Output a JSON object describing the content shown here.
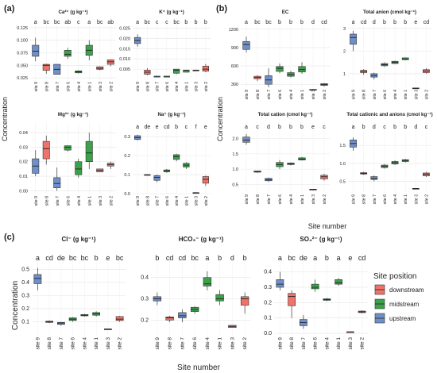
{
  "figure": {
    "panel_labels": [
      "(a)",
      "(b)",
      "(c)"
    ],
    "y_axis_label": "Concentration",
    "x_axis_label_b": "Site number",
    "x_axis_label_c": "Site number",
    "sites": [
      "site 9",
      "site 8",
      "site 7",
      "site 6",
      "site 4",
      "site 1",
      "site 3",
      "site 2"
    ],
    "positions": [
      "upstream",
      "downstream",
      "upstream",
      "midstream",
      "midstream",
      "midstream",
      "downstream",
      "downstream"
    ],
    "colors": {
      "upstream": "#6f8fc9",
      "midstream": "#3ca24a",
      "downstream": "#f0726b"
    },
    "legend": {
      "title": "Site position",
      "items": [
        {
          "label": "downstream",
          "key": "downstream"
        },
        {
          "label": "midstream",
          "key": "midstream"
        },
        {
          "label": "upstream",
          "key": "upstream"
        }
      ]
    }
  },
  "chart_data": [
    {
      "type": "box",
      "title": "Ca²⁺ (g kg⁻¹)",
      "ylim": [
        0.022,
        0.128
      ],
      "ticks": [
        "0.025",
        "0.050",
        "0.075",
        "0.100",
        "0.125"
      ],
      "tickValues": [
        0.025,
        0.05,
        0.075,
        0.1,
        0.125
      ],
      "letters": [
        "a",
        "bc",
        "bc",
        "ab",
        "c",
        "a",
        "bc",
        "ab"
      ],
      "boxes": [
        [
          0.058,
          0.068,
          0.078,
          0.09,
          0.105
        ],
        [
          0.033,
          0.04,
          0.05,
          0.052,
          0.053
        ],
        [
          0.032,
          0.032,
          0.042,
          0.052,
          0.052
        ],
        [
          0.063,
          0.068,
          0.072,
          0.08,
          0.085
        ],
        [
          0.034,
          0.035,
          0.037,
          0.039,
          0.04
        ],
        [
          0.06,
          0.07,
          0.08,
          0.09,
          0.1
        ],
        [
          0.04,
          0.042,
          0.044,
          0.047,
          0.048
        ],
        [
          0.048,
          0.052,
          0.057,
          0.061,
          0.062
        ]
      ]
    },
    {
      "type": "box",
      "title": "K⁺ (g kg⁻¹)",
      "ylim": [
        0,
        0.026
      ],
      "ticks": [
        "0.005",
        "0.010",
        "0.015",
        "0.020",
        "0.025"
      ],
      "tickValues": [
        0.005,
        0.01,
        0.015,
        0.02,
        0.025
      ],
      "letters": [
        "a",
        "bc",
        "c",
        "c",
        "bc",
        "b",
        "b",
        "b"
      ],
      "boxes": [
        [
          0.016,
          0.0175,
          0.019,
          0.0205,
          0.022
        ],
        [
          0.002,
          0.0025,
          0.0035,
          0.0045,
          0.0055
        ],
        [
          0.0015,
          0.0015,
          0.0015,
          0.0015,
          0.0015
        ],
        [
          0.0015,
          0.0015,
          0.0015,
          0.0015,
          0.0015
        ],
        [
          0.0025,
          0.003,
          0.0045,
          0.005,
          0.005
        ],
        [
          0.0035,
          0.0035,
          0.0045,
          0.0045,
          0.0045
        ],
        [
          0.0045,
          0.0045,
          0.0045,
          0.0045,
          0.0045
        ],
        [
          0.0035,
          0.004,
          0.005,
          0.0065,
          0.0075
        ]
      ]
    },
    {
      "type": "box",
      "title": "Mg²⁺ (g kg⁻¹)",
      "ylim": [
        -0.002,
        0.045
      ],
      "ticks": [
        "0.00",
        "0.01",
        "0.02",
        "0.03",
        "0.04"
      ],
      "tickValues": [
        0,
        0.01,
        0.02,
        0.03,
        0.04
      ],
      "letters": [],
      "boxes": [
        [
          0.01,
          0.012,
          0.017,
          0.022,
          0.028
        ],
        [
          0.018,
          0.022,
          0.029,
          0.034,
          0.038
        ],
        [
          0.0,
          0.002,
          0.005,
          0.009,
          0.016
        ],
        [
          0.027,
          0.028,
          0.03,
          0.031,
          0.031
        ],
        [
          0.009,
          0.011,
          0.015,
          0.02,
          0.022
        ],
        [
          0.015,
          0.02,
          0.026,
          0.034,
          0.04
        ],
        [
          0.013,
          0.013,
          0.014,
          0.015,
          0.015
        ],
        [
          0.015,
          0.017,
          0.018,
          0.019,
          0.02
        ]
      ]
    },
    {
      "type": "box",
      "title": "Na⁺ (g kg⁻¹)",
      "ylim": [
        0,
        0.33
      ],
      "ticks": [
        "0.0",
        "0.1",
        "0.2",
        "0.3"
      ],
      "tickValues": [
        0,
        0.1,
        0.2,
        0.3
      ],
      "letters": [
        "a",
        "de",
        "e",
        "cd",
        "b",
        "c",
        "f",
        "e"
      ],
      "boxes": [
        [
          0.28,
          0.285,
          0.295,
          0.305,
          0.31
        ],
        [
          0.095,
          0.097,
          0.1,
          0.1,
          0.1
        ],
        [
          0.06,
          0.07,
          0.085,
          0.095,
          0.1
        ],
        [
          0.11,
          0.115,
          0.12,
          0.125,
          0.13
        ],
        [
          0.17,
          0.18,
          0.195,
          0.205,
          0.21
        ],
        [
          0.13,
          0.14,
          0.15,
          0.16,
          0.165
        ],
        [
          0.005,
          0.005,
          0.005,
          0.005,
          0.005
        ],
        [
          0.04,
          0.055,
          0.075,
          0.09,
          0.095
        ]
      ]
    },
    {
      "type": "box",
      "title": "EC",
      "ylim": [
        250,
        1250
      ],
      "ticks": [
        "300",
        "600",
        "900",
        "1200"
      ],
      "tickValues": [
        300,
        600,
        900,
        1200
      ],
      "letters": [
        "a",
        "bc",
        "bc",
        "b",
        "b",
        "b",
        "d",
        "cd"
      ],
      "boxes": [
        [
          820,
          870,
          950,
          1000,
          1080
        ],
        [
          350,
          390,
          410,
          430,
          450
        ],
        [
          250,
          300,
          370,
          440,
          560
        ],
        [
          480,
          510,
          560,
          590,
          640
        ],
        [
          410,
          430,
          460,
          490,
          520
        ],
        [
          470,
          500,
          540,
          590,
          660
        ],
        [
          200,
          205,
          210,
          215,
          220
        ],
        [
          260,
          280,
          295,
          310,
          320
        ]
      ]
    },
    {
      "type": "box",
      "title": "Total anion (cmol kg⁻¹)",
      "ylim": [
        0.4,
        3.1
      ],
      "ticks": [
        "1",
        "2",
        "3"
      ],
      "tickValues": [
        1,
        2,
        3
      ],
      "letters": [
        "a",
        "cd",
        "d",
        "b",
        "b",
        "b",
        "e",
        "cd"
      ],
      "boxes": [
        [
          2.0,
          2.3,
          2.6,
          2.75,
          2.9
        ],
        [
          0.95,
          1.05,
          1.1,
          1.15,
          1.2
        ],
        [
          0.75,
          0.85,
          0.92,
          1.0,
          1.05
        ],
        [
          1.3,
          1.35,
          1.4,
          1.45,
          1.5
        ],
        [
          1.42,
          1.45,
          1.5,
          1.55,
          1.58
        ],
        [
          1.6,
          1.62,
          1.65,
          1.7,
          1.72
        ],
        [
          0.35,
          0.35,
          0.36,
          0.37,
          0.37
        ],
        [
          1.0,
          1.05,
          1.12,
          1.18,
          1.25
        ]
      ]
    },
    {
      "type": "box",
      "title": "Total cation (cmol kg⁻¹)",
      "ylim": [
        0.25,
        2.25
      ],
      "ticks": [
        "0.5",
        "1.0",
        "1.5",
        "2.0"
      ],
      "tickValues": [
        0.5,
        1,
        1.5,
        2
      ],
      "letters": [
        "a",
        "c",
        "d",
        "b",
        "b",
        "b",
        "e",
        "c"
      ],
      "boxes": [
        [
          1.8,
          1.88,
          1.95,
          2.05,
          2.15
        ],
        [
          0.88,
          0.9,
          0.92,
          0.94,
          0.95
        ],
        [
          0.58,
          0.62,
          0.65,
          0.7,
          0.72
        ],
        [
          1.0,
          1.08,
          1.15,
          1.22,
          1.3
        ],
        [
          1.12,
          1.15,
          1.17,
          1.2,
          1.22
        ],
        [
          1.28,
          1.3,
          1.33,
          1.37,
          1.4
        ],
        [
          0.34,
          0.34,
          0.34,
          0.34,
          0.34
        ],
        [
          0.62,
          0.68,
          0.75,
          0.8,
          0.85
        ]
      ]
    },
    {
      "type": "box",
      "title": "Total cationic and anions (cmol kg⁻¹)",
      "ylim": [
        0.2,
        1.9
      ],
      "ticks": [
        "0.5",
        "1.0",
        "1.5"
      ],
      "tickValues": [
        0.5,
        1,
        1.5
      ],
      "letters": [
        "a",
        "b",
        "d",
        "c",
        "b",
        "b",
        "d",
        "c"
      ],
      "boxes": [
        [
          1.35,
          1.45,
          1.55,
          1.65,
          1.72
        ],
        [
          0.68,
          0.7,
          0.72,
          0.74,
          0.76
        ],
        [
          0.5,
          0.55,
          0.58,
          0.63,
          0.66
        ],
        [
          0.85,
          0.88,
          0.92,
          0.95,
          0.98
        ],
        [
          0.95,
          0.98,
          1.02,
          1.05,
          1.08
        ],
        [
          1.02,
          1.05,
          1.08,
          1.1,
          1.12
        ],
        [
          0.3,
          0.3,
          0.3,
          0.3,
          0.3
        ],
        [
          0.62,
          0.65,
          0.7,
          0.73,
          0.76
        ]
      ]
    },
    {
      "type": "box",
      "title": "Cl⁻ (g kg⁻¹)",
      "ylim": [
        0.0,
        0.55
      ],
      "ticks": [
        "0.1",
        "0.2",
        "0.3",
        "0.4",
        "0.5"
      ],
      "tickValues": [
        0.1,
        0.2,
        0.3,
        0.4,
        0.5
      ],
      "letters": [
        "a",
        "cd",
        "de",
        "bc",
        "bc",
        "b",
        "e",
        "bc"
      ],
      "boxes": [
        [
          0.34,
          0.39,
          0.43,
          0.46,
          0.51
        ],
        [
          0.09,
          0.095,
          0.1,
          0.105,
          0.11
        ],
        [
          0.07,
          0.08,
          0.09,
          0.095,
          0.1
        ],
        [
          0.1,
          0.11,
          0.12,
          0.13,
          0.135
        ],
        [
          0.14,
          0.145,
          0.15,
          0.155,
          0.16
        ],
        [
          0.14,
          0.15,
          0.16,
          0.17,
          0.18
        ],
        [
          0.045,
          0.045,
          0.045,
          0.045,
          0.045
        ],
        [
          0.1,
          0.11,
          0.12,
          0.14,
          0.145
        ]
      ]
    },
    {
      "type": "box",
      "title": "HCO₃⁻ (g kg⁻¹)",
      "ylim": [
        0.13,
        0.47
      ],
      "ticks": [
        "0.2",
        "0.3",
        "0.4"
      ],
      "tickValues": [
        0.2,
        0.3,
        0.4
      ],
      "letters": [
        "b",
        "cd",
        "cd",
        "bc",
        "a",
        "b",
        "d",
        "b"
      ],
      "boxes": [
        [
          0.27,
          0.29,
          0.3,
          0.31,
          0.33
        ],
        [
          0.19,
          0.2,
          0.21,
          0.215,
          0.22
        ],
        [
          0.19,
          0.21,
          0.22,
          0.235,
          0.25
        ],
        [
          0.23,
          0.24,
          0.25,
          0.26,
          0.265
        ],
        [
          0.34,
          0.36,
          0.37,
          0.4,
          0.43
        ],
        [
          0.27,
          0.29,
          0.3,
          0.32,
          0.34
        ],
        [
          0.165,
          0.165,
          0.17,
          0.175,
          0.175
        ],
        [
          0.23,
          0.27,
          0.3,
          0.31,
          0.33
        ]
      ]
    },
    {
      "type": "box",
      "title": "SO₄²⁻ (g kg⁻¹)",
      "ylim": [
        -0.01,
        0.46
      ],
      "ticks": [
        "0.0",
        "0.1",
        "0.2",
        "0.3",
        "0.4"
      ],
      "tickValues": [
        0,
        0.1,
        0.2,
        0.3,
        0.4
      ],
      "letters": [
        "a",
        "bc",
        "de",
        "a",
        "b",
        "a",
        "e",
        "cd"
      ],
      "boxes": [
        [
          0.28,
          0.3,
          0.32,
          0.35,
          0.4
        ],
        [
          0.1,
          0.18,
          0.24,
          0.26,
          0.28
        ],
        [
          0.03,
          0.05,
          0.07,
          0.09,
          0.12
        ],
        [
          0.27,
          0.29,
          0.3,
          0.32,
          0.35
        ],
        [
          0.21,
          0.215,
          0.22,
          0.225,
          0.23
        ],
        [
          0.31,
          0.32,
          0.33,
          0.35,
          0.36
        ],
        [
          0.005,
          0.005,
          0.01,
          0.01,
          0.01
        ],
        [
          0.13,
          0.135,
          0.14,
          0.145,
          0.15
        ]
      ]
    }
  ]
}
